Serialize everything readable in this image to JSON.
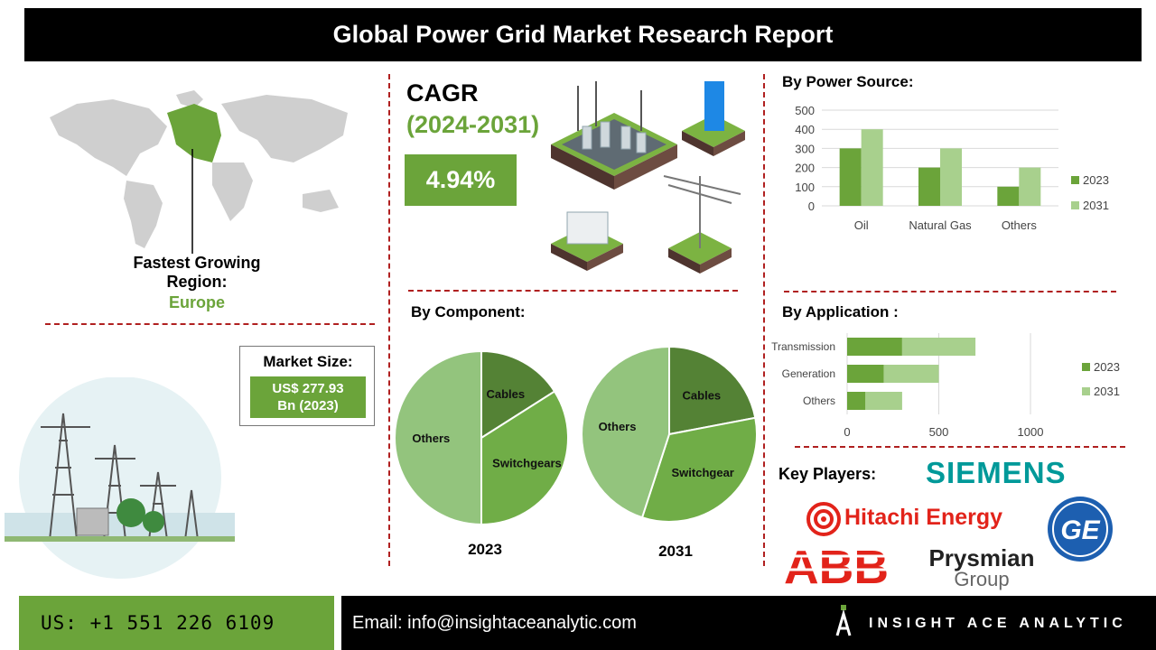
{
  "header": {
    "title": "Global Power Grid Market Research Report"
  },
  "region": {
    "label_line1": "Fastest Growing",
    "label_line2": "Region:",
    "value": "Europe"
  },
  "market_size": {
    "title": "Market Size:",
    "value_line1": "US$ 277.93",
    "value_line2": "Bn (2023)"
  },
  "cagr": {
    "title": "CAGR",
    "period": "(2024-2031)",
    "value": "4.94%"
  },
  "by_power_source": {
    "title": "By Power Source:",
    "chart_data": {
      "type": "bar",
      "categories": [
        "Oil",
        "Natural Gas",
        "Others"
      ],
      "series": [
        {
          "name": "2023",
          "values": [
            300,
            200,
            100
          ],
          "color": "#6ba43a"
        },
        {
          "name": "2031",
          "values": [
            400,
            300,
            200
          ],
          "color": "#a8d08d"
        }
      ],
      "ylim": [
        0,
        500
      ],
      "yticks": [
        "0",
        "100",
        "200",
        "300",
        "400",
        "500"
      ],
      "grid": true,
      "legend": "right"
    }
  },
  "by_component": {
    "title": "By Component:",
    "chart_data": [
      {
        "type": "pie",
        "year": "2023",
        "slices": [
          {
            "label": "Cables",
            "value": 16,
            "color": "#548235"
          },
          {
            "label": "Switchgears",
            "value": 34,
            "color": "#70ad47"
          },
          {
            "label": "Others",
            "value": 50,
            "color": "#93c47d"
          }
        ]
      },
      {
        "type": "pie",
        "year": "2031",
        "slices": [
          {
            "label": "Cables",
            "value": 22,
            "color": "#548235"
          },
          {
            "label": "Switchgear",
            "value": 33,
            "color": "#70ad47"
          },
          {
            "label": "Others",
            "value": 45,
            "color": "#93c47d"
          }
        ]
      }
    ]
  },
  "by_application": {
    "title": "By Application :",
    "chart_data": {
      "type": "bar",
      "orientation": "horizontal",
      "stacked": true,
      "categories": [
        "Transmission",
        "Generation",
        "Others"
      ],
      "series": [
        {
          "name": "2023",
          "values": [
            300,
            200,
            100
          ],
          "color": "#6ba43a"
        },
        {
          "name": "2031",
          "values": [
            400,
            300,
            200
          ],
          "color": "#a8d08d"
        }
      ],
      "xlim": [
        0,
        1000
      ],
      "xticks": [
        "0",
        "500",
        "1000"
      ],
      "grid": true,
      "legend": "right"
    }
  },
  "key_players": {
    "title": "Key Players:",
    "logos": [
      "SIEMENS",
      "Hitachi Energy",
      "ABB",
      "Prysmian",
      "Group",
      "GE"
    ]
  },
  "footer": {
    "phone": "US: +1 551 226 6109",
    "email": "Email: info@insightaceanalytic.com",
    "brand": "INSIGHT ACE ANALYTIC"
  },
  "colors": {
    "accent_green": "#6ba43a",
    "light_green": "#a8d08d",
    "divider_red": "#b02020"
  }
}
